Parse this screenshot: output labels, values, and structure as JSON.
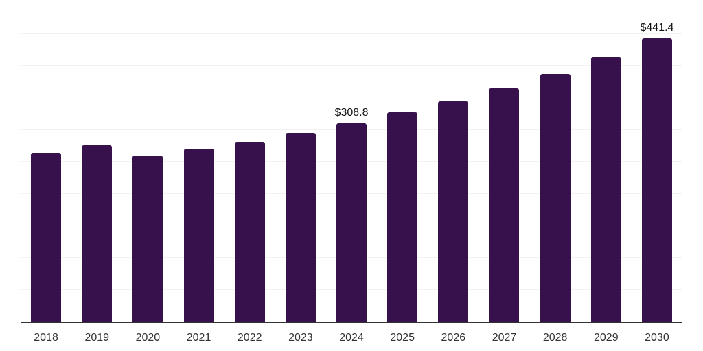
{
  "chart_data": {
    "type": "bar",
    "title": "",
    "xlabel": "",
    "ylabel": "",
    "categories": [
      "2018",
      "2019",
      "2020",
      "2021",
      "2022",
      "2023",
      "2024",
      "2025",
      "2026",
      "2027",
      "2028",
      "2029",
      "2030"
    ],
    "values": [
      262.5,
      275.0,
      259.0,
      269.5,
      280.5,
      294.0,
      308.8,
      325.5,
      343.5,
      363.5,
      386.0,
      412.0,
      441.4
    ],
    "annotations": [
      {
        "category": "2024",
        "text": "$308.8"
      },
      {
        "category": "2030",
        "text": "$441.4"
      }
    ],
    "ylim": [
      0,
      500
    ],
    "gridline_step": 50,
    "grid": "horizontal",
    "legend": "none",
    "y_axis_labels_visible": false,
    "colors": {
      "bar": "#36114C",
      "gridline": "#F2F2F2",
      "axis_line": "#333333",
      "tick_label": "#333333",
      "data_label": "#111111",
      "background": "#FFFFFF"
    }
  }
}
